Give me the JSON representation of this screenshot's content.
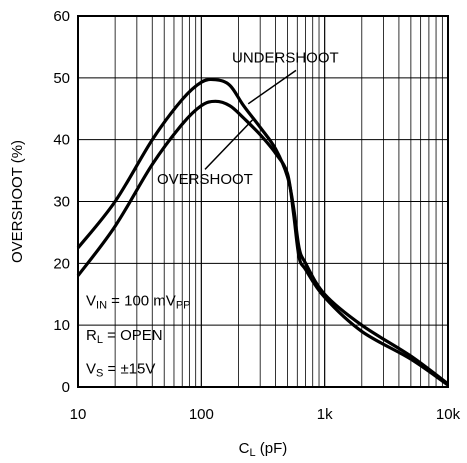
{
  "chart_data": {
    "type": "line",
    "xlabel": {
      "main": "C",
      "sub": "L",
      "tail": " (pF)"
    },
    "ylabel": "OVERSHOOT (%)",
    "xscale": "log",
    "xlim": [
      10,
      10000
    ],
    "ylim": [
      0,
      60
    ],
    "grid": true,
    "x_ticks": [
      {
        "value": 10,
        "label": "10"
      },
      {
        "value": 100,
        "label": "100"
      },
      {
        "value": 1000,
        "label": "1k"
      },
      {
        "value": 10000,
        "label": "10k"
      }
    ],
    "y_ticks": [
      0,
      10,
      20,
      30,
      40,
      50,
      60
    ],
    "series": [
      {
        "name": "UNDERSHOOT",
        "points": [
          [
            10,
            22.5
          ],
          [
            20,
            30
          ],
          [
            40,
            40
          ],
          [
            70,
            46.5
          ],
          [
            100,
            49.3
          ],
          [
            130,
            49.7
          ],
          [
            170,
            48.8
          ],
          [
            220,
            45.5
          ],
          [
            300,
            42
          ],
          [
            400,
            38.5
          ],
          [
            500,
            34
          ],
          [
            560,
            29
          ],
          [
            620,
            22.5
          ],
          [
            700,
            20
          ],
          [
            1000,
            15
          ],
          [
            2000,
            10
          ],
          [
            5000,
            5
          ],
          [
            10000,
            0.5
          ]
        ]
      },
      {
        "name": "OVERSHOOT",
        "points": [
          [
            10,
            18
          ],
          [
            20,
            26
          ],
          [
            40,
            36
          ],
          [
            70,
            42.5
          ],
          [
            100,
            45.5
          ],
          [
            130,
            46.2
          ],
          [
            170,
            45.5
          ],
          [
            220,
            43.5
          ],
          [
            300,
            40.8
          ],
          [
            400,
            37.8
          ],
          [
            500,
            34.5
          ],
          [
            560,
            28
          ],
          [
            620,
            21
          ],
          [
            700,
            19
          ],
          [
            1000,
            14.5
          ],
          [
            2000,
            9
          ],
          [
            5000,
            4.5
          ],
          [
            10000,
            0.3
          ]
        ]
      }
    ],
    "annotations": [
      "UNDERSHOOT",
      "OVERSHOOT"
    ],
    "conditions": [
      {
        "main": "V",
        "sub": "IN",
        "tail": " = 100 mV",
        "sub2": "PP"
      },
      {
        "main": "R",
        "sub": "L",
        "tail": " = OPEN",
        "sub2": ""
      },
      {
        "main": "V",
        "sub": "S",
        "tail": " = ±15V",
        "sub2": ""
      }
    ]
  }
}
